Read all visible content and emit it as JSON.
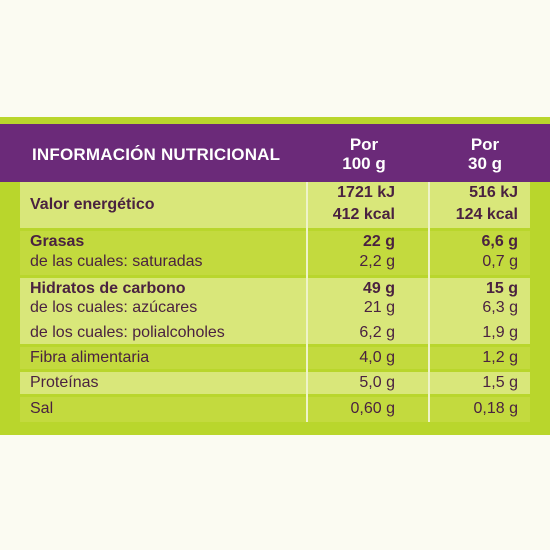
{
  "header": {
    "title": "INFORMACIÓN NUTRICIONAL",
    "col1_line1": "Por",
    "col1_line2": "100 g",
    "col2_line1": "Por",
    "col2_line2": "30 g"
  },
  "rows": {
    "energy": {
      "label": "Valor energético",
      "kj_100": "1721 kJ",
      "kcal_100": "412 kcal",
      "kj_30": "516 kJ",
      "kcal_30": "124 kcal"
    },
    "fat": {
      "label": "Grasas",
      "v100": "22 g",
      "v30": "6,6 g"
    },
    "saturated": {
      "label": "de las cuales: saturadas",
      "v100": "2,2 g",
      "v30": "0,7 g"
    },
    "carbs": {
      "label": "Hidratos de carbono",
      "v100": "49 g",
      "v30": "15 g"
    },
    "sugars": {
      "label": "de los cuales: azúcares",
      "v100": "21 g",
      "v30": "6,3 g"
    },
    "polyols": {
      "label": "de los cuales: polialcoholes",
      "v100": "6,2 g",
      "v30": "1,9 g"
    },
    "fibre": {
      "label": "Fibra alimentaria",
      "v100": "4,0 g",
      "v30": "1,2 g"
    },
    "protein": {
      "label": "Proteínas",
      "v100": "5,0 g",
      "v30": "1,5 g"
    },
    "salt": {
      "label": "Sal",
      "v100": "0,60 g",
      "v30": "0,18 g"
    }
  },
  "colors": {
    "header_bg": "#6b2a79",
    "panel_green": "#b9d62c",
    "row_light": "#d9e77a",
    "row_dark": "#c3da3e",
    "text": "#4a2240"
  }
}
